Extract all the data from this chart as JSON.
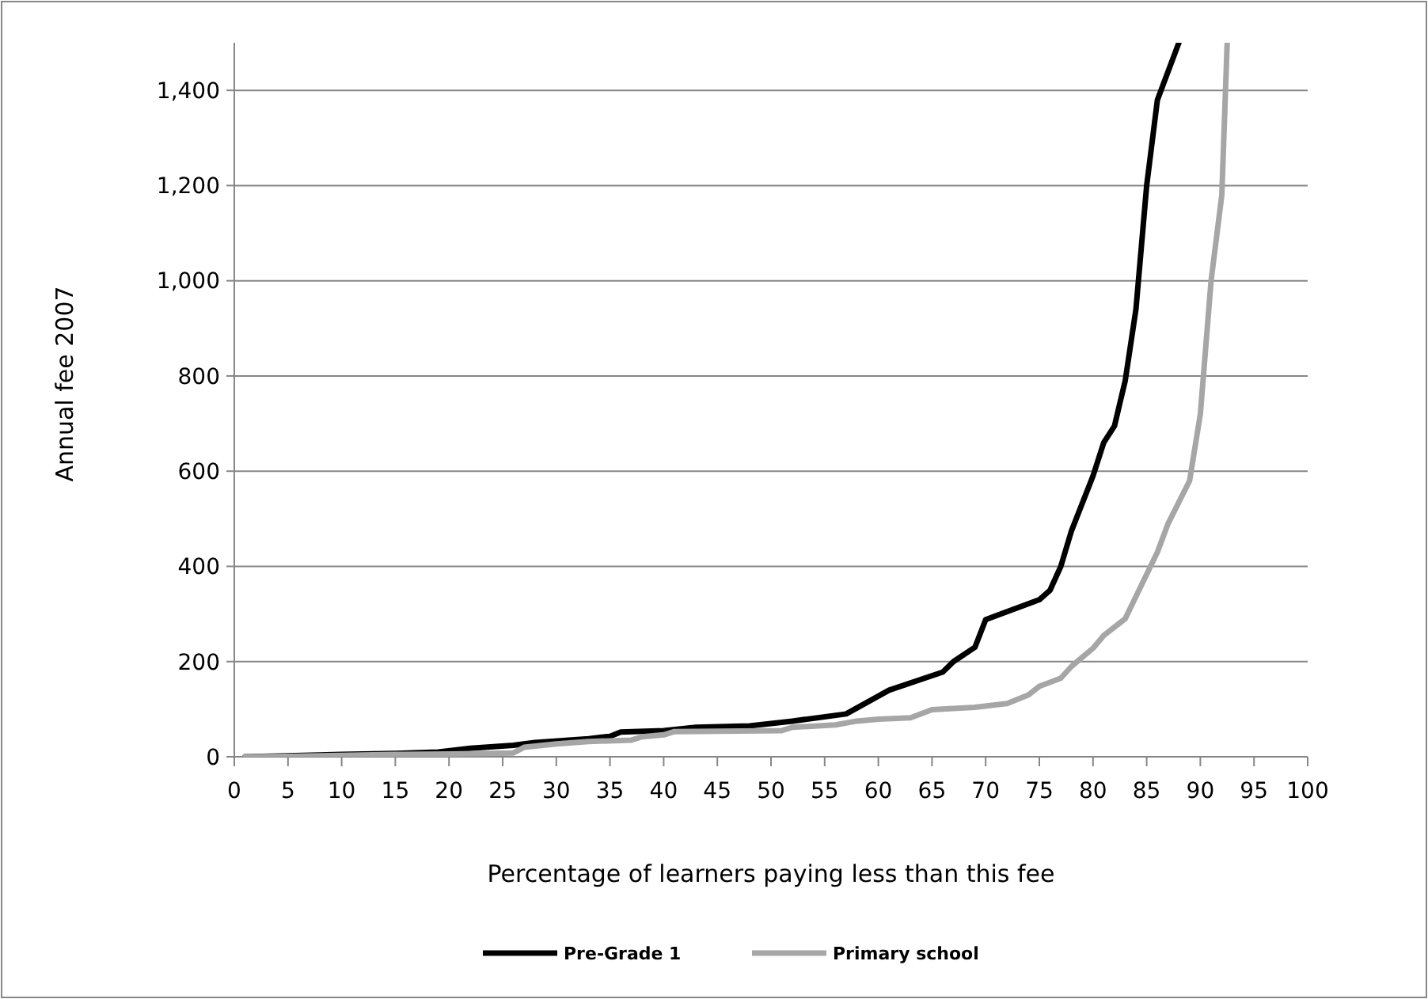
{
  "chart_data": {
    "type": "line",
    "xlabel": "Percentage of learners paying less than this fee",
    "ylabel": "Annual fee 2007",
    "xlim": [
      0,
      100
    ],
    "xticks": [
      0,
      5,
      10,
      15,
      20,
      25,
      30,
      35,
      40,
      45,
      50,
      55,
      60,
      65,
      70,
      75,
      80,
      85,
      90,
      95,
      100
    ],
    "ylim": [
      0,
      1500
    ],
    "yticks": [
      {
        "value": 0,
        "label": "0"
      },
      {
        "value": 200,
        "label": "200"
      },
      {
        "value": 400,
        "label": "400"
      },
      {
        "value": 600,
        "label": "600"
      },
      {
        "value": 800,
        "label": "800"
      },
      {
        "value": 1000,
        "label": "1,000"
      },
      {
        "value": 1200,
        "label": "1,200"
      },
      {
        "value": 1400,
        "label": "1,400"
      }
    ],
    "grid": "y",
    "legend": "bottom",
    "marker": "none",
    "line_style": "solid",
    "series": [
      {
        "name": "Pre-Grade 1",
        "color": "#000000",
        "x": [
          1,
          5,
          10,
          15,
          19,
          22,
          26,
          28,
          33,
          35,
          36,
          40,
          43,
          48,
          52,
          57,
          59,
          61,
          66,
          67,
          69,
          70,
          75,
          76,
          77,
          78,
          80,
          81,
          82,
          83,
          84,
          85,
          86,
          88
        ],
        "values": [
          0,
          2,
          5,
          7,
          10,
          18,
          24,
          30,
          38,
          43,
          52,
          55,
          62,
          65,
          75,
          90,
          115,
          140,
          178,
          200,
          230,
          288,
          330,
          350,
          400,
          475,
          590,
          660,
          695,
          790,
          940,
          1200,
          1380,
          1500
        ]
      },
      {
        "name": "Primary school",
        "color": "#a6a6a6",
        "x": [
          1,
          5,
          10,
          15,
          20,
          26,
          27,
          30,
          33,
          37,
          38,
          40,
          41,
          51,
          52,
          56,
          58,
          60,
          63,
          65,
          69,
          72,
          74,
          75,
          77,
          78,
          80,
          81,
          83,
          86,
          87,
          89,
          90,
          91,
          92,
          92.5
        ],
        "values": [
          0,
          1,
          3,
          5,
          6,
          8,
          20,
          27,
          32,
          35,
          42,
          46,
          53,
          55,
          62,
          67,
          75,
          79,
          82,
          99,
          104,
          112,
          130,
          148,
          165,
          190,
          228,
          255,
          290,
          430,
          490,
          580,
          720,
          1000,
          1180,
          1500
        ]
      }
    ]
  }
}
